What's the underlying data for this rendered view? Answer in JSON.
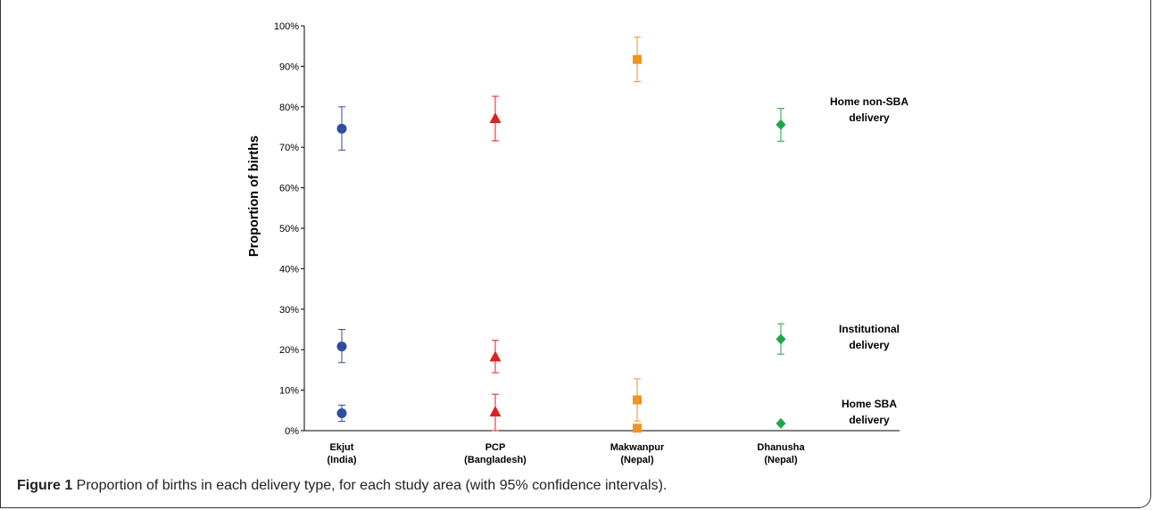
{
  "chart_data": {
    "type": "scatter",
    "ylabel": "Proportion of births",
    "xlabel": "",
    "ylim": [
      0,
      100
    ],
    "yticks": [
      "0%",
      "10%",
      "20%",
      "30%",
      "40%",
      "50%",
      "60%",
      "70%",
      "80%",
      "90%",
      "100%"
    ],
    "categories": [
      {
        "line1": "Ekjut",
        "line2": "(India)"
      },
      {
        "line1": "PCP",
        "line2": "(Bangladesh)"
      },
      {
        "line1": "Makwanpur",
        "line2": "(Nepal)"
      },
      {
        "line1": "Dhanusha",
        "line2": "(Nepal)"
      }
    ],
    "groups": [
      {
        "label_line1": "Home non-SBA",
        "label_line2": "delivery"
      },
      {
        "label_line1": "Institutional",
        "label_line2": "delivery"
      },
      {
        "label_line1": "Home SBA",
        "label_line2": "delivery"
      }
    ],
    "series": [
      {
        "site": "Ekjut (India)",
        "marker": "circle",
        "color": "#2f4d9e",
        "points": [
          {
            "group": "Home non-SBA delivery",
            "value": 74.6,
            "low": 69.3,
            "high": 80.0
          },
          {
            "group": "Institutional delivery",
            "value": 20.8,
            "low": 16.8,
            "high": 25.0
          },
          {
            "group": "Home SBA delivery",
            "value": 4.3,
            "low": 2.3,
            "high": 6.3
          }
        ]
      },
      {
        "site": "PCP (Bangladesh)",
        "marker": "triangle",
        "color": "#e02020",
        "points": [
          {
            "group": "Home non-SBA delivery",
            "value": 77.1,
            "low": 71.6,
            "high": 82.6
          },
          {
            "group": "Institutional delivery",
            "value": 18.2,
            "low": 14.3,
            "high": 22.3
          },
          {
            "group": "Home SBA delivery",
            "value": 4.6,
            "low": 0,
            "high": 9.0
          }
        ]
      },
      {
        "site": "Makwanpur (Nepal)",
        "marker": "square",
        "color": "#f29320",
        "points": [
          {
            "group": "Home non-SBA delivery",
            "value": 91.7,
            "low": 86.2,
            "high": 97.2
          },
          {
            "group": "Institutional delivery",
            "value": 7.6,
            "low": 2.4,
            "high": 12.8
          },
          {
            "group": "Home SBA delivery",
            "value": 0.6,
            "low": 0.6,
            "high": 0.6
          }
        ]
      },
      {
        "site": "Dhanusha (Nepal)",
        "marker": "diamond",
        "color": "#1fa64a",
        "points": [
          {
            "group": "Home non-SBA delivery",
            "value": 75.6,
            "low": 71.5,
            "high": 79.6
          },
          {
            "group": "Institutional delivery",
            "value": 22.6,
            "low": 18.9,
            "high": 26.4
          },
          {
            "group": "Home SBA delivery",
            "value": 1.8,
            "low": 1.8,
            "high": 1.8
          }
        ]
      }
    ]
  },
  "caption": {
    "label": "Figure 1",
    "text": " Proportion of births in each delivery type, for each study area (with 95% confidence intervals)."
  }
}
